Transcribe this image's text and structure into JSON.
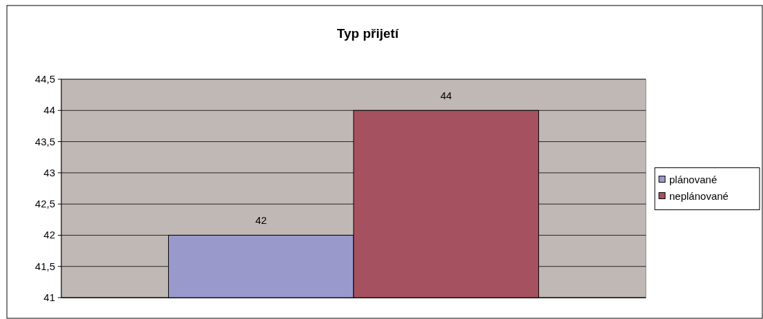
{
  "chart_data": {
    "type": "bar",
    "title": "Typ přijetí",
    "categories": [
      null
    ],
    "series": [
      {
        "name": "plánované",
        "color": "#9999cc",
        "values": [
          42
        ]
      },
      {
        "name": "neplánované",
        "color": "#a65160",
        "values": [
          44
        ]
      }
    ],
    "ylim": [
      41,
      44.5
    ],
    "yticks": [
      41,
      {
        "value": 41.5,
        "label": "41,5"
      },
      42,
      {
        "value": 42.5,
        "label": "42,5"
      },
      43,
      {
        "value": 43.5,
        "label": "43,5"
      },
      44,
      {
        "value": 44.5,
        "label": "44,5"
      }
    ],
    "grid": "y",
    "legend": "right",
    "data_labels": true
  }
}
